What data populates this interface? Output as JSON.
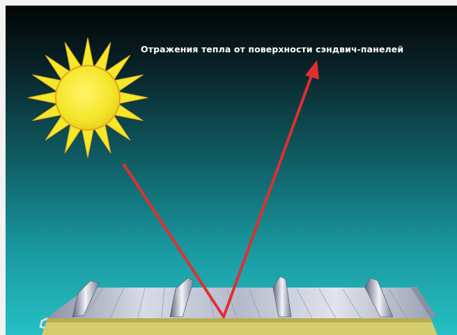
{
  "diagram": {
    "title": "Отражения тепла от поверхности сэндвич-панелей",
    "elements": {
      "sun": "sun-icon",
      "incident_ray": "incident-heat-ray",
      "reflected_ray": "reflected-heat-ray",
      "panel": "sandwich-panel"
    },
    "colors": {
      "sky_top": "#050707",
      "sky_mid": "#0f4c56",
      "sky_bottom": "#22b7bd",
      "sun_fill": "#f5e82a",
      "sun_stroke": "#e2a51d",
      "ray": "#e02f2f",
      "panel_metal": "#c7cbd6",
      "panel_core": "#d9cf72",
      "caption": "#ffffff"
    }
  }
}
